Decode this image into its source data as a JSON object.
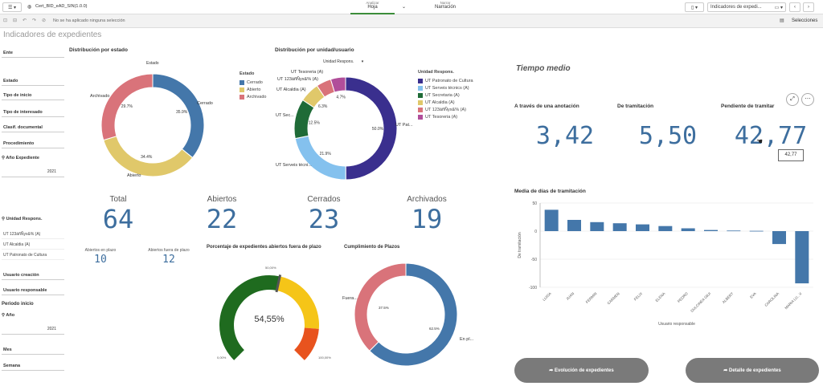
{
  "topbar": {
    "app_name": "Cert_BID_eAD_SIN(1.0.0)",
    "tab_analyze_small": "Analizar",
    "tab_analyze": "Hoja",
    "tab_narrate_small": "Narrar",
    "tab_narrate": "Narración",
    "sheet_dropdown": "Indicadores de expedi...",
    "selections": "Selecciones"
  },
  "subbar": {
    "no_selection": "No se ha aplicado ninguna selección"
  },
  "page": {
    "title": "Indicadores de expedientes"
  },
  "filters": {
    "ente": "Ente",
    "estado": "Estado",
    "tipo_inicio": "Tipo de inicio",
    "tipo_interesado": "Tipo de interesado",
    "clasif": "Clasif. documental",
    "procedimiento": "Procedimiento",
    "anio_exp": "Año Expediente",
    "anio_exp_val": "2021",
    "unidad": "Unidad Respons.",
    "unidad_items": [
      "UT 123áñÑyx&% (A)",
      "UT Alcaldia (A)",
      "UT Patronato de Cultura"
    ],
    "usuario_creacion": "Usuario creación",
    "usuario_resp": "Usuario responsable",
    "periodo": "Periodo inicio",
    "anio": "Año",
    "anio_val": "2021",
    "mes": "Mes",
    "semana": "Semana"
  },
  "estado_chart": {
    "title": "Distribución por estado",
    "legend_title": "Estado",
    "label_above": "Estado",
    "labels": {
      "cerrado": "Cerrado",
      "archivado": "Archivado",
      "abierto": "Abierto"
    },
    "legend": [
      {
        "name": "Cerrado",
        "color": "#4477aa"
      },
      {
        "name": "Abierto",
        "color": "#e0c86a"
      },
      {
        "name": "Archivado",
        "color": "#d9737a"
      }
    ]
  },
  "unidad_chart": {
    "title": "Distribución por unidad/usuario",
    "dropdown": "Unidad Respons.",
    "legend_title": "Unidad Respons.",
    "labels": {
      "tesoreria": "UT Tesoreria (A)",
      "special": "UT 123áñÑyx&% (A)",
      "alcaldia": "UT Alcaldia (A)",
      "sec": "UT Sec...",
      "serveis": "UT Serveis técni...",
      "patronato": "UT Pat..."
    },
    "legend": [
      {
        "name": "UT Patronato de Cultura",
        "color": "#3a2f8e"
      },
      {
        "name": "UT Serveis técnics (A)",
        "color": "#84c1ee"
      },
      {
        "name": "UT Secretaria (A)",
        "color": "#1f6b37"
      },
      {
        "name": "UT Alcaldia (A)",
        "color": "#e0c86a"
      },
      {
        "name": "UT 123áñÑyx&% (A)",
        "color": "#d9737a"
      },
      {
        "name": "UT Tesoreria (A)",
        "color": "#b14e9a"
      }
    ]
  },
  "kpis": {
    "total_label": "Total",
    "total": "64",
    "abiertos_label": "Abiertos",
    "abiertos": "22",
    "cerrados_label": "Cerrados",
    "cerrados": "23",
    "archivados_label": "Archivados",
    "archivados": "19",
    "en_plazo_label": "Abiertos en plazo",
    "en_plazo": "10",
    "fuera_label": "Abiertos fuera de plazo",
    "fuera": "12"
  },
  "gauge": {
    "title": "Porcentaje de expedientes abiertos fuera de plazo",
    "value_label": "54,55%",
    "min": "0,00%",
    "mid": "50,00%",
    "max": "100,00%"
  },
  "cumplimiento": {
    "title": "Cumplimiento de Plazos",
    "label_fuera": "Fuera...",
    "label_en": "En pl...",
    "pct_fuera": "37.5%",
    "pct_en": "62.5%"
  },
  "tiempo": {
    "title": "Tiempo medio",
    "c1_label": "A través de una anotación",
    "c1": "3,42",
    "c2_label": "De tramitación",
    "c2": "5,50",
    "c3_label": "Pendiente de tramitar",
    "c3": "42,77",
    "tooltip": "42,77"
  },
  "buttons": {
    "evolucion": "Evolución de expedientes",
    "detalle": "Detalle de expedientes"
  },
  "chart_data": [
    {
      "type": "pie",
      "title": "Distribución por estado",
      "labels": [
        "Cerrado",
        "Abierto",
        "Archivado"
      ],
      "values": [
        35.9,
        34.4,
        29.7
      ],
      "colors": [
        "#4477aa",
        "#e0c86a",
        "#d9737a"
      ],
      "printed_labels": [
        "35.9%",
        "34.4%",
        "29.7%"
      ]
    },
    {
      "type": "pie",
      "title": "Distribución por unidad/usuario",
      "labels": [
        "UT Patronato de Cultura",
        "UT Serveis técnics (A)",
        "UT Secretaria (A)",
        "UT Alcaldia (A)",
        "UT 123áñÑyx&% (A)",
        "UT Tesoreria (A)"
      ],
      "values": [
        50.0,
        21.9,
        12.5,
        6.3,
        4.7,
        4.7
      ],
      "colors": [
        "#3a2f8e",
        "#84c1ee",
        "#1f6b37",
        "#e0c86a",
        "#d9737a",
        "#b14e9a"
      ],
      "printed_labels": [
        "50.0%",
        "21.9%",
        "12.5%",
        "6.3%",
        "",
        "4.7%"
      ]
    },
    {
      "type": "pie",
      "title": "Cumplimiento de Plazos",
      "labels": [
        "En pl...",
        "Fuera..."
      ],
      "values": [
        62.5,
        37.5
      ],
      "colors": [
        "#4477aa",
        "#d9737a"
      ]
    },
    {
      "type": "bar",
      "title": "Media de días de tramitación",
      "xlabel": "Usuario responsable",
      "ylabel": "De tramitación",
      "ylim": [
        -100,
        50
      ],
      "yticks": [
        50,
        0,
        -50,
        -100
      ],
      "categories": [
        "LUISA",
        "JUAN",
        "FERMIN",
        "CARMEN",
        "FELIX",
        "ELENA",
        "PEDRO",
        "DULCINEA GIUI",
        "ALBERT",
        "EVA",
        "CAROLINA",
        "MARIA LU...V"
      ],
      "values": [
        38,
        20,
        16,
        14,
        12,
        9,
        5,
        2,
        1,
        0.5,
        -23,
        -93
      ],
      "color": "#4477aa"
    }
  ]
}
